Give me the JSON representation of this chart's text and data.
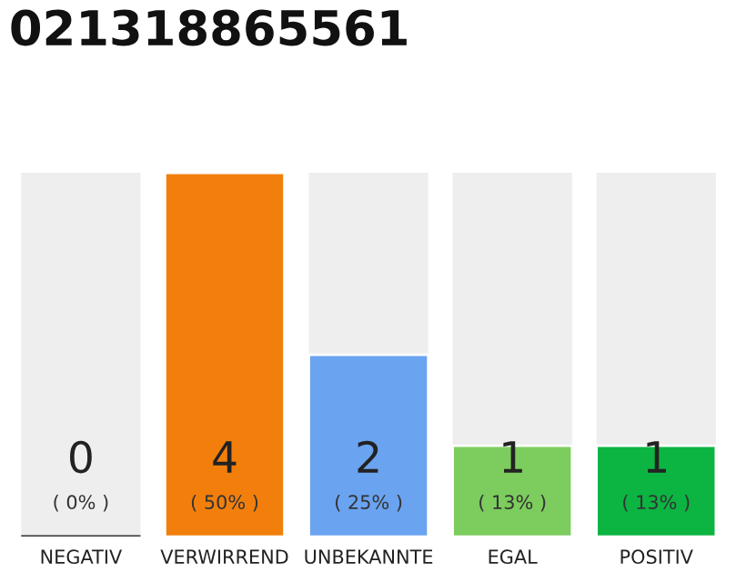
{
  "chart_data": {
    "type": "bar",
    "title": "021318865561",
    "categories": [
      "NEGATIV",
      "VERWIRREND",
      "UNBEKANNTE",
      "EGAL",
      "POSITIV"
    ],
    "values": [
      0,
      4,
      2,
      1,
      1
    ],
    "colors": [
      "#333333",
      "#f27f0c",
      "#6aa3f0",
      "#7ccc5e",
      "#0cb442"
    ],
    "ylim": [
      0,
      4
    ],
    "data_labels": true,
    "annotations": [
      "( 0% )",
      "( 50% )",
      "( 25% )",
      "( 13% )",
      "( 13% )"
    ],
    "grid": false,
    "legend": false
  }
}
